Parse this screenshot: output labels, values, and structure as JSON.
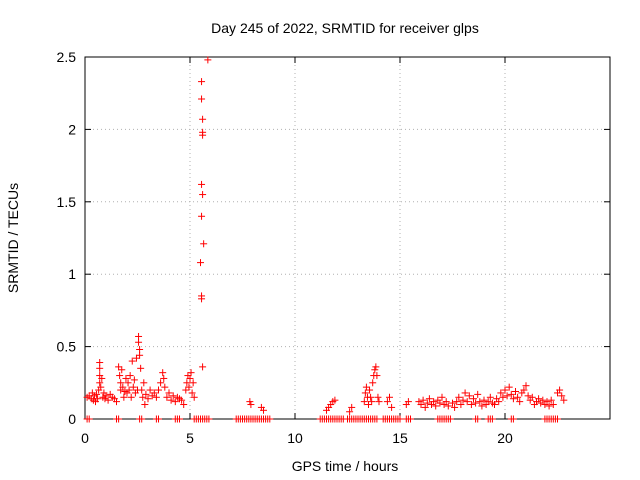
{
  "chart_data": {
    "type": "scatter",
    "title": "Day 245 of 2022, SRMTID for receiver glps",
    "xlabel": "GPS time / hours",
    "ylabel": "SRMTID / TECUs",
    "xlim": [
      0,
      25
    ],
    "ylim": [
      0,
      2.5
    ],
    "xticks": [
      0,
      5,
      10,
      15,
      20
    ],
    "yticks": [
      0,
      0.5,
      1,
      1.5,
      2,
      2.5
    ],
    "xtick_labels": [
      "0",
      "5",
      "10",
      "15",
      "20"
    ],
    "ytick_labels": [
      "0",
      "0.5",
      "1",
      "1.5",
      "2",
      "2.5"
    ],
    "grid": true,
    "marker": "+",
    "series_color": "#ff0000",
    "series": [
      {
        "name": "SRMTID",
        "points": [
          [
            0.1,
            0.15
          ],
          [
            0.2,
            0.16
          ],
          [
            0.3,
            0.14
          ],
          [
            0.35,
            0.18
          ],
          [
            0.4,
            0.13
          ],
          [
            0.45,
            0.16
          ],
          [
            0.5,
            0.12
          ],
          [
            0.55,
            0.17
          ],
          [
            0.6,
            0.14
          ],
          [
            0.65,
            0.2
          ],
          [
            0.7,
            0.25
          ],
          [
            0.7,
            0.3
          ],
          [
            0.7,
            0.35
          ],
          [
            0.7,
            0.39
          ],
          [
            0.75,
            0.22
          ],
          [
            0.8,
            0.28
          ],
          [
            0.85,
            0.15
          ],
          [
            0.9,
            0.18
          ],
          [
            0.95,
            0.14
          ],
          [
            1.0,
            0.16
          ],
          [
            1.1,
            0.13
          ],
          [
            1.2,
            0.17
          ],
          [
            1.3,
            0.15
          ],
          [
            1.4,
            0.14
          ],
          [
            1.5,
            0.12
          ],
          [
            1.6,
            0.36
          ],
          [
            1.65,
            0.3
          ],
          [
            1.7,
            0.25
          ],
          [
            1.7,
            0.2
          ],
          [
            1.75,
            0.34
          ],
          [
            1.8,
            0.22
          ],
          [
            1.85,
            0.15
          ],
          [
            1.9,
            0.19
          ],
          [
            1.95,
            0.28
          ],
          [
            2.0,
            0.18
          ],
          [
            2.05,
            0.25
          ],
          [
            2.1,
            0.2
          ],
          [
            2.15,
            0.3
          ],
          [
            2.2,
            0.15
          ],
          [
            2.25,
            0.4
          ],
          [
            2.3,
            0.22
          ],
          [
            2.35,
            0.27
          ],
          [
            2.4,
            0.18
          ],
          [
            2.45,
            0.42
          ],
          [
            2.5,
            0.2
          ],
          [
            2.55,
            0.57
          ],
          [
            2.55,
            0.53
          ],
          [
            2.6,
            0.48
          ],
          [
            2.6,
            0.44
          ],
          [
            2.65,
            0.35
          ],
          [
            2.7,
            0.2
          ],
          [
            2.75,
            0.15
          ],
          [
            2.8,
            0.25
          ],
          [
            2.85,
            0.1
          ],
          [
            2.9,
            0.17
          ],
          [
            3.0,
            0.14
          ],
          [
            3.1,
            0.2
          ],
          [
            3.2,
            0.16
          ],
          [
            3.3,
            0.18
          ],
          [
            3.4,
            0.15
          ],
          [
            3.5,
            0.2
          ],
          [
            3.6,
            0.25
          ],
          [
            3.7,
            0.32
          ],
          [
            3.75,
            0.28
          ],
          [
            3.8,
            0.22
          ],
          [
            3.9,
            0.15
          ],
          [
            4.0,
            0.18
          ],
          [
            4.1,
            0.13
          ],
          [
            4.2,
            0.16
          ],
          [
            4.3,
            0.12
          ],
          [
            4.4,
            0.15
          ],
          [
            4.5,
            0.14
          ],
          [
            4.6,
            0.13
          ],
          [
            4.7,
            0.1
          ],
          [
            4.8,
            0.2
          ],
          [
            4.85,
            0.25
          ],
          [
            4.9,
            0.3
          ],
          [
            4.95,
            0.22
          ],
          [
            5.0,
            0.28
          ],
          [
            5.05,
            0.32
          ],
          [
            5.1,
            0.18
          ],
          [
            5.15,
            0.25
          ],
          [
            5.2,
            0.15
          ],
          [
            5.5,
            1.08
          ],
          [
            5.55,
            0.83
          ],
          [
            5.55,
            0.85
          ],
          [
            5.55,
            1.4
          ],
          [
            5.55,
            1.62
          ],
          [
            5.6,
            0.36
          ],
          [
            5.6,
            1.55
          ],
          [
            5.6,
            1.98
          ],
          [
            5.6,
            1.96
          ],
          [
            5.6,
            2.07
          ],
          [
            5.55,
            2.21
          ],
          [
            5.55,
            2.33
          ],
          [
            5.65,
            1.21
          ],
          [
            5.85,
            2.48
          ],
          [
            7.85,
            0.12
          ],
          [
            7.9,
            0.1
          ],
          [
            8.4,
            0.08
          ],
          [
            8.5,
            0.06
          ],
          [
            11.5,
            0.06
          ],
          [
            11.6,
            0.08
          ],
          [
            11.7,
            0.1
          ],
          [
            11.8,
            0.12
          ],
          [
            11.9,
            0.13
          ],
          [
            12.6,
            0.05
          ],
          [
            12.7,
            0.08
          ],
          [
            13.3,
            0.12
          ],
          [
            13.35,
            0.18
          ],
          [
            13.4,
            0.22
          ],
          [
            13.45,
            0.15
          ],
          [
            13.5,
            0.1
          ],
          [
            13.55,
            0.2
          ],
          [
            13.6,
            0.15
          ],
          [
            13.65,
            0.12
          ],
          [
            13.7,
            0.25
          ],
          [
            13.75,
            0.3
          ],
          [
            13.8,
            0.34
          ],
          [
            13.85,
            0.36
          ],
          [
            13.9,
            0.3
          ],
          [
            13.95,
            0.15
          ],
          [
            14.0,
            0.12
          ],
          [
            14.4,
            0.12
          ],
          [
            14.5,
            0.15
          ],
          [
            14.6,
            0.08
          ],
          [
            15.3,
            0.1
          ],
          [
            15.4,
            0.12
          ],
          [
            15.9,
            0.12
          ],
          [
            16.0,
            0.1
          ],
          [
            16.1,
            0.13
          ],
          [
            16.2,
            0.08
          ],
          [
            16.3,
            0.11
          ],
          [
            16.4,
            0.14
          ],
          [
            16.5,
            0.1
          ],
          [
            16.6,
            0.12
          ],
          [
            16.7,
            0.09
          ],
          [
            16.8,
            0.13
          ],
          [
            16.9,
            0.11
          ],
          [
            17.0,
            0.15
          ],
          [
            17.1,
            0.1
          ],
          [
            17.2,
            0.12
          ],
          [
            17.3,
            0.09
          ],
          [
            17.5,
            0.11
          ],
          [
            17.6,
            0.08
          ],
          [
            17.7,
            0.12
          ],
          [
            17.8,
            0.15
          ],
          [
            17.9,
            0.1
          ],
          [
            18.0,
            0.13
          ],
          [
            18.1,
            0.18
          ],
          [
            18.2,
            0.12
          ],
          [
            18.3,
            0.16
          ],
          [
            18.4,
            0.1
          ],
          [
            18.5,
            0.14
          ],
          [
            18.6,
            0.11
          ],
          [
            18.7,
            0.17
          ],
          [
            18.8,
            0.12
          ],
          [
            18.9,
            0.09
          ],
          [
            19.0,
            0.13
          ],
          [
            19.1,
            0.1
          ],
          [
            19.2,
            0.12
          ],
          [
            19.3,
            0.15
          ],
          [
            19.4,
            0.11
          ],
          [
            19.5,
            0.1
          ],
          [
            19.6,
            0.14
          ],
          [
            19.7,
            0.12
          ],
          [
            19.8,
            0.18
          ],
          [
            19.9,
            0.15
          ],
          [
            20.0,
            0.2
          ],
          [
            20.1,
            0.16
          ],
          [
            20.2,
            0.22
          ],
          [
            20.3,
            0.17
          ],
          [
            20.4,
            0.14
          ],
          [
            20.5,
            0.19
          ],
          [
            20.6,
            0.15
          ],
          [
            20.7,
            0.12
          ],
          [
            20.8,
            0.18
          ],
          [
            20.9,
            0.2
          ],
          [
            21.0,
            0.23
          ],
          [
            21.1,
            0.16
          ],
          [
            21.2,
            0.13
          ],
          [
            21.3,
            0.15
          ],
          [
            21.4,
            0.1
          ],
          [
            21.5,
            0.12
          ],
          [
            21.6,
            0.14
          ],
          [
            21.7,
            0.11
          ],
          [
            21.8,
            0.13
          ],
          [
            21.9,
            0.1
          ],
          [
            22.0,
            0.12
          ],
          [
            22.1,
            0.09
          ],
          [
            22.2,
            0.13
          ],
          [
            22.3,
            0.1
          ],
          [
            22.5,
            0.18
          ],
          [
            22.6,
            0.2
          ],
          [
            22.7,
            0.16
          ],
          [
            22.8,
            0.13
          ]
        ],
        "baseline_ranges": [
          [
            0.1,
            0.2
          ],
          [
            1.5,
            1.6
          ],
          [
            2.6,
            2.7
          ],
          [
            3.4,
            3.5
          ],
          [
            4.3,
            4.5
          ],
          [
            5.2,
            5.9
          ],
          [
            7.2,
            8.8
          ],
          [
            11.2,
            12.3
          ],
          [
            12.5,
            13.9
          ],
          [
            14.2,
            15.0
          ],
          [
            15.3,
            15.5
          ],
          [
            16.8,
            17.4
          ],
          [
            18.6,
            18.7
          ],
          [
            19.2,
            19.4
          ],
          [
            20.3,
            20.4
          ],
          [
            21.9,
            22.5
          ]
        ],
        "baseline_value": 0
      }
    ]
  }
}
